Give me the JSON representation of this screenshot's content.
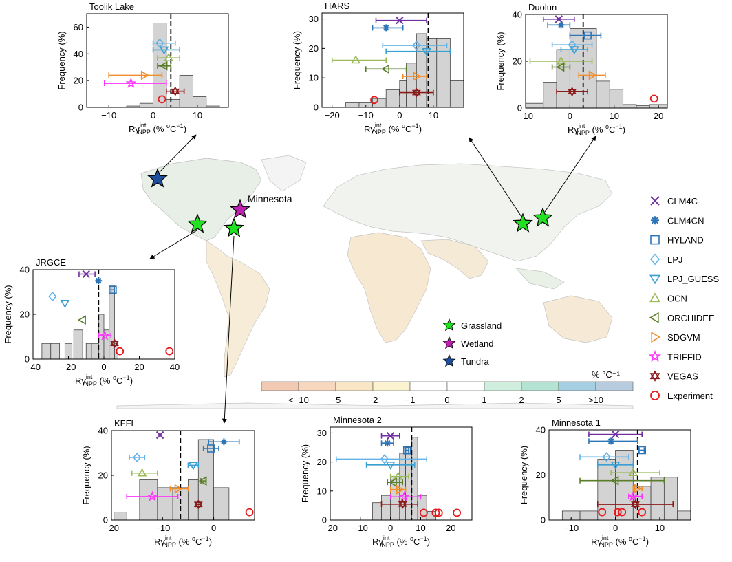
{
  "figure": {
    "legend_title": "",
    "models": [
      {
        "name": "CLM4C",
        "color": "#7030a0",
        "icon": "x-marker-icon"
      },
      {
        "name": "CLM4CN",
        "color": "#2e75b6",
        "icon": "asterisk-marker-icon"
      },
      {
        "name": "HYLAND",
        "color": "#2e75b6",
        "icon": "square-marker-icon"
      },
      {
        "name": "LPJ",
        "color": "#63b3e8",
        "icon": "diamond-marker-icon"
      },
      {
        "name": "LPJ_GUESS",
        "color": "#3a9fd2",
        "icon": "triangle-down-marker-icon"
      },
      {
        "name": "OCN",
        "color": "#9bbb59",
        "icon": "triangle-up-marker-icon"
      },
      {
        "name": "ORCHIDEE",
        "color": "#5a7d2a",
        "icon": "triangle-left-marker-icon"
      },
      {
        "name": "SDGVM",
        "color": "#f28e2b",
        "icon": "triangle-right-marker-icon"
      },
      {
        "name": "TRIFFID",
        "color": "#ff33ff",
        "icon": "star-marker-icon"
      },
      {
        "name": "VEGAS",
        "color": "#8b1a1a",
        "icon": "hexagram-marker-icon"
      },
      {
        "name": "Experiment",
        "color": "#e41a1c",
        "icon": "circle-marker-icon"
      }
    ],
    "map": {
      "site_legend": [
        {
          "label": "Grassland",
          "color": "#22e022"
        },
        {
          "label": "Wetland",
          "color": "#c020b0"
        },
        {
          "label": "Tundra",
          "color": "#1f4e9c"
        }
      ],
      "minnesota_label": "Minnesota",
      "colorbar_unit": "% °C⁻¹",
      "colorbar_labels": [
        "<-10",
        "-5",
        "-2",
        "-1",
        "0",
        "1",
        "2",
        "5",
        ">10"
      ],
      "colorbar_colors": [
        "#f2c9b3",
        "#f7d8bf",
        "#f9e6c4",
        "#fbf3cf",
        "#ffffff",
        "#ffffff",
        "#cfeedd",
        "#b5e3d3",
        "#a6cfe3",
        "#b8cce0"
      ]
    }
  },
  "chart_data": [
    {
      "type": "bar",
      "title": "Toolik Lake",
      "xlabel": "Rγᴺᴾᴾ (% °C⁻¹)",
      "ylabel": "Frequency (%)",
      "xlim": [
        -15,
        17
      ],
      "ylim": [
        0,
        70
      ],
      "xticks": [
        -10,
        0,
        10
      ],
      "yticks": [
        0,
        20,
        40,
        60
      ],
      "bins": [
        {
          "x0": -6,
          "x1": -3,
          "value": 1
        },
        {
          "x0": -3,
          "x1": 0,
          "value": 3
        },
        {
          "x0": 0,
          "x1": 3,
          "value": 63
        },
        {
          "x0": 3,
          "x1": 6,
          "value": 6
        },
        {
          "x0": 6,
          "x1": 9,
          "value": 24
        },
        {
          "x0": 9,
          "x1": 12,
          "value": 8
        },
        {
          "x0": 12,
          "x1": 15,
          "value": 1
        }
      ],
      "dashed_line": 4,
      "markers": [
        {
          "model": "LPJ",
          "x": 1.5,
          "y": 48,
          "lo": 0,
          "hi": 5
        },
        {
          "model": "LPJ_GUESS",
          "x": 2.5,
          "y": 43,
          "lo": 0,
          "hi": 6
        },
        {
          "model": "OCN",
          "x": 3.5,
          "y": 37,
          "lo": 1,
          "hi": 6
        },
        {
          "model": "ORCHIDEE",
          "x": 2.5,
          "y": 31,
          "lo": 1,
          "hi": 4
        },
        {
          "model": "SDGVM",
          "x": -2,
          "y": 24,
          "lo": -10,
          "hi": 2
        },
        {
          "model": "TRIFFID",
          "x": -5,
          "y": 18,
          "lo": -11,
          "hi": 3
        },
        {
          "model": "VEGAS",
          "x": 5,
          "y": 12,
          "lo": 3,
          "hi": 7
        },
        {
          "model": "Experiment",
          "x": 2,
          "y": 6
        }
      ]
    },
    {
      "type": "bar",
      "title": "HARS",
      "xlabel": "Rγᴺᴾᴾ (% °C⁻¹)",
      "ylabel": "Frequency (%)",
      "xlim": [
        -23,
        19
      ],
      "ylim": [
        0,
        32
      ],
      "xticks": [
        -20,
        -10,
        0,
        10
      ],
      "yticks": [
        0,
        10,
        20,
        30
      ],
      "bins": [
        {
          "x0": -16,
          "x1": -12,
          "value": 1.5
        },
        {
          "x0": -12,
          "x1": -8,
          "value": 1.5
        },
        {
          "x0": -8,
          "x1": -4,
          "value": 3
        },
        {
          "x0": -4,
          "x1": 0,
          "value": 6
        },
        {
          "x0": 0,
          "x1": 2,
          "value": 9
        },
        {
          "x0": 2,
          "x1": 5,
          "value": 15
        },
        {
          "x0": 5,
          "x1": 8,
          "value": 25
        },
        {
          "x0": 8,
          "x1": 11,
          "value": 23.5
        },
        {
          "x0": 11,
          "x1": 15,
          "value": 23.5
        },
        {
          "x0": 15,
          "x1": 19,
          "value": 9
        }
      ],
      "dashed_line": 8.5,
      "markers": [
        {
          "model": "CLM4C",
          "x": 0,
          "y": 29.5,
          "lo": -7,
          "hi": 8
        },
        {
          "model": "CLM4CN",
          "x": -4,
          "y": 27,
          "lo": -8,
          "hi": 1
        },
        {
          "model": "LPJ",
          "x": 5,
          "y": 21,
          "lo": -5,
          "hi": 14
        },
        {
          "model": "LPJ_GUESS",
          "x": 8,
          "y": 19,
          "lo": -4,
          "hi": 15
        },
        {
          "model": "OCN",
          "x": -13,
          "y": 16,
          "lo": -20,
          "hi": -4
        },
        {
          "model": "ORCHIDEE",
          "x": -4,
          "y": 13,
          "lo": -10,
          "hi": 2
        },
        {
          "model": "SDGVM",
          "x": 5,
          "y": 10.5,
          "lo": 1,
          "hi": 8
        },
        {
          "model": "VEGAS",
          "x": 5,
          "y": 5,
          "lo": 0,
          "hi": 10
        },
        {
          "model": "Experiment",
          "x": -7.5,
          "y": 2.5
        }
      ]
    },
    {
      "type": "bar",
      "title": "Duolun",
      "xlabel": "Rγᴺᴾᴾ (% °C⁻¹)",
      "ylabel": "Frequency (%)",
      "xlim": [
        -10,
        22
      ],
      "ylim": [
        0,
        40
      ],
      "xticks": [
        -10,
        0,
        10,
        20
      ],
      "yticks": [
        0,
        20,
        40
      ],
      "bins": [
        {
          "x0": -10,
          "x1": -6,
          "value": 2
        },
        {
          "x0": -6,
          "x1": -3,
          "value": 11
        },
        {
          "x0": -3,
          "x1": 0,
          "value": 25
        },
        {
          "x0": 0,
          "x1": 3,
          "value": 34
        },
        {
          "x0": 3,
          "x1": 6,
          "value": 34
        },
        {
          "x0": 6,
          "x1": 9,
          "value": 11.5
        },
        {
          "x0": 9,
          "x1": 12,
          "value": 8
        },
        {
          "x0": 12,
          "x1": 15,
          "value": 1.5
        },
        {
          "x0": 15,
          "x1": 18,
          "value": 1
        },
        {
          "x0": 18,
          "x1": 22,
          "value": 1.5
        }
      ],
      "dashed_line": 3,
      "markers": [
        {
          "model": "CLM4C",
          "x": -2.5,
          "y": 38,
          "lo": -6,
          "hi": 1
        },
        {
          "model": "CLM4CN",
          "x": -2,
          "y": 35.5,
          "lo": -5,
          "hi": 0
        },
        {
          "model": "HYLAND",
          "x": 4,
          "y": 31,
          "lo": 0,
          "hi": 7
        },
        {
          "model": "LPJ",
          "x": 0.5,
          "y": 27,
          "lo": -4,
          "hi": 5
        },
        {
          "model": "LPJ_GUESS",
          "x": 1,
          "y": 25,
          "lo": -2,
          "hi": 4
        },
        {
          "model": "OCN",
          "x": -2,
          "y": 20,
          "lo": -9,
          "hi": 5
        },
        {
          "model": "ORCHIDEE",
          "x": -2,
          "y": 17.5,
          "lo": -4,
          "hi": 0
        },
        {
          "model": "SDGVM",
          "x": 5,
          "y": 14,
          "lo": 2,
          "hi": 8
        },
        {
          "model": "VEGAS",
          "x": 0.5,
          "y": 7,
          "lo": -3,
          "hi": 4
        },
        {
          "model": "Experiment",
          "x": 19,
          "y": 4
        }
      ]
    },
    {
      "type": "bar",
      "title": "JRGCE",
      "xlabel": "Rγᴺᴾᴾ (% °C⁻¹)",
      "ylabel": "Frequency (%)",
      "xlim": [
        -40,
        40
      ],
      "ylim": [
        0,
        40
      ],
      "xticks": [
        -40,
        -20,
        0,
        20,
        40
      ],
      "yticks": [
        0,
        20,
        40
      ],
      "bins": [
        {
          "x0": -35,
          "x1": -30,
          "value": 7
        },
        {
          "x0": -30,
          "x1": -25,
          "value": 7
        },
        {
          "x0": -22,
          "x1": -18,
          "value": 7
        },
        {
          "x0": -17,
          "x1": -12,
          "value": 13
        },
        {
          "x0": -10,
          "x1": -7,
          "value": 7
        },
        {
          "x0": -7,
          "x1": -3,
          "value": 7
        },
        {
          "x0": -3,
          "x1": 0,
          "value": 20
        },
        {
          "x0": 0,
          "x1": 3,
          "value": 13
        },
        {
          "x0": 3,
          "x1": 6,
          "value": 33
        },
        {
          "x0": 6,
          "x1": 8,
          "value": 7
        }
      ],
      "dashed_line": -3,
      "markers": [
        {
          "model": "CLM4C",
          "x": -10,
          "y": 38,
          "lo": -14,
          "hi": -5
        },
        {
          "model": "CLM4CN",
          "x": -3,
          "y": 35,
          "lo": -4,
          "hi": -2
        },
        {
          "model": "HYLAND",
          "x": 5,
          "y": 31,
          "lo": 4,
          "hi": 6
        },
        {
          "model": "LPJ",
          "x": -29,
          "y": 28
        },
        {
          "model": "LPJ_GUESS",
          "x": -22,
          "y": 25
        },
        {
          "model": "ORCHIDEE",
          "x": -12,
          "y": 17.5
        },
        {
          "model": "TRIFFID",
          "x": 0.5,
          "y": 10.5,
          "lo": -3,
          "hi": 4
        },
        {
          "model": "VEGAS",
          "x": 6,
          "y": 7
        },
        {
          "model": "Experiment",
          "x": 9,
          "y": 3.5
        },
        {
          "model": "Experiment",
          "x": 37,
          "y": 3.5
        }
      ]
    },
    {
      "type": "bar",
      "title": "KFFL",
      "xlabel": "Rγᴺᴾᴾ (% °C⁻¹)",
      "ylabel": "Frequency (%)",
      "xlim": [
        -20,
        8
      ],
      "ylim": [
        0,
        40
      ],
      "xticks": [
        -20,
        -10,
        0
      ],
      "yticks": [
        0,
        20,
        40
      ],
      "bins": [
        {
          "x0": -19.5,
          "x1": -17,
          "value": 3.5
        },
        {
          "x0": -14.5,
          "x1": -11,
          "value": 18
        },
        {
          "x0": -11,
          "x1": -8,
          "value": 14.5
        },
        {
          "x0": -8,
          "x1": -5,
          "value": 14.5
        },
        {
          "x0": -5,
          "x1": -3,
          "value": 18
        },
        {
          "x0": -3,
          "x1": 0,
          "value": 36
        },
        {
          "x0": 0,
          "x1": 3,
          "value": 14.5
        }
      ],
      "dashed_line": -6.5,
      "markers": [
        {
          "model": "CLM4C",
          "x": -10.5,
          "y": 38
        },
        {
          "model": "CLM4CN",
          "x": 2,
          "y": 35,
          "lo": -1,
          "hi": 5
        },
        {
          "model": "HYLAND",
          "x": -0.5,
          "y": 32,
          "lo": -2,
          "hi": 1
        },
        {
          "model": "LPJ",
          "x": -15,
          "y": 28,
          "lo": -16.5,
          "hi": -13.5
        },
        {
          "model": "LPJ_GUESS",
          "x": -4,
          "y": 24.5,
          "lo": -5,
          "hi": -3
        },
        {
          "model": "OCN",
          "x": -14,
          "y": 21,
          "lo": -16,
          "hi": -11
        },
        {
          "model": "ORCHIDEE",
          "x": -2,
          "y": 17.5,
          "lo": -2.5,
          "hi": -1.5
        },
        {
          "model": "SDGVM",
          "x": -7,
          "y": 14,
          "lo": -8.5,
          "hi": -5
        },
        {
          "model": "TRIFFID",
          "x": -12,
          "y": 10.5,
          "lo": -17,
          "hi": -7
        },
        {
          "model": "VEGAS",
          "x": -3,
          "y": 7,
          "lo": -3.5,
          "hi": -2.5
        },
        {
          "model": "Experiment",
          "x": 7,
          "y": 3.5
        }
      ]
    },
    {
      "type": "bar",
      "title": "Minnesota 2",
      "xlabel": "Rγᴺᴾᴾ (% °C⁻¹)",
      "ylabel": "Frequency (%)",
      "xlim": [
        -20,
        27
      ],
      "ylim": [
        0,
        32
      ],
      "xticks": [
        -20,
        -10,
        0,
        10,
        20
      ],
      "yticks": [
        0,
        10,
        20,
        30
      ],
      "bins": [
        {
          "x0": -6,
          "x1": -3,
          "value": 6
        },
        {
          "x0": -3,
          "x1": 0,
          "value": 8.5
        },
        {
          "x0": 0,
          "x1": 3,
          "value": 15
        },
        {
          "x0": 3,
          "x1": 5,
          "value": 23
        },
        {
          "x0": 5,
          "x1": 7,
          "value": 25
        },
        {
          "x0": 7,
          "x1": 9,
          "value": 28.5
        },
        {
          "x0": 9,
          "x1": 12,
          "value": 8.5
        },
        {
          "x0": 12,
          "x1": 15,
          "value": 3
        }
      ],
      "dashed_line": 7,
      "markers": [
        {
          "model": "CLM4C",
          "x": 0,
          "y": 29,
          "lo": -3,
          "hi": 3
        },
        {
          "model": "CLM4CN",
          "x": -1,
          "y": 26.5,
          "lo": -3,
          "hi": 1
        },
        {
          "model": "HYLAND",
          "x": 5.5,
          "y": 24,
          "lo": 5,
          "hi": 6
        },
        {
          "model": "LPJ",
          "x": -2,
          "y": 21,
          "lo": -18,
          "hi": 12
        },
        {
          "model": "LPJ_GUESS",
          "x": 0,
          "y": 19,
          "lo": -8,
          "hi": 8
        },
        {
          "model": "OCN",
          "x": 2.5,
          "y": 15,
          "lo": 0,
          "hi": 6
        },
        {
          "model": "ORCHIDEE",
          "x": 1,
          "y": 13,
          "lo": -1,
          "hi": 4
        },
        {
          "model": "SDGVM",
          "x": 3,
          "y": 10.5,
          "lo": 0,
          "hi": 5
        },
        {
          "model": "TRIFFID",
          "x": 4.5,
          "y": 8,
          "lo": 0,
          "hi": 10
        },
        {
          "model": "VEGAS",
          "x": 4,
          "y": 5.5,
          "lo": -3,
          "hi": 9
        },
        {
          "model": "Experiment",
          "x": 11,
          "y": 2.5
        },
        {
          "model": "Experiment",
          "x": 15,
          "y": 2.5
        },
        {
          "model": "Experiment",
          "x": 16,
          "y": 2.5
        },
        {
          "model": "Experiment",
          "x": 22,
          "y": 2.5
        }
      ]
    },
    {
      "type": "bar",
      "title": "Minnesota 1",
      "xlabel": "Rγᴺᴾᴾ (% °C⁻¹)",
      "ylabel": "Frequency (%)",
      "xlim": [
        -15,
        17
      ],
      "ylim": [
        0,
        40
      ],
      "xticks": [
        -10,
        0,
        10
      ],
      "yticks": [
        0,
        20,
        40
      ],
      "bins": [
        {
          "x0": -12,
          "x1": -8,
          "value": 4
        },
        {
          "x0": -8,
          "x1": -4,
          "value": 4
        },
        {
          "x0": -4,
          "x1": 0,
          "value": 27
        },
        {
          "x0": 0,
          "x1": 4,
          "value": 31
        },
        {
          "x0": 4,
          "x1": 8,
          "value": 15
        },
        {
          "x0": 8,
          "x1": 11,
          "value": 19
        },
        {
          "x0": 11,
          "x1": 14,
          "value": 19
        },
        {
          "x0": 14,
          "x1": 17,
          "value": 4
        }
      ],
      "dashed_line": 5,
      "markers": [
        {
          "model": "CLM4C",
          "x": 0,
          "y": 38,
          "lo": -6,
          "hi": 6
        },
        {
          "model": "CLM4CN",
          "x": -1,
          "y": 35,
          "lo": -6,
          "hi": 5
        },
        {
          "model": "HYLAND",
          "x": 6,
          "y": 31,
          "lo": 5.5,
          "hi": 6.5
        },
        {
          "model": "LPJ",
          "x": -2,
          "y": 28,
          "lo": -8,
          "hi": 3
        },
        {
          "model": "LPJ_GUESS",
          "x": 0,
          "y": 24.5,
          "lo": -4,
          "hi": 4
        },
        {
          "model": "OCN",
          "x": 4,
          "y": 21,
          "lo": -1,
          "hi": 10
        },
        {
          "model": "ORCHIDEE",
          "x": 0,
          "y": 17.5,
          "lo": -8,
          "hi": 11
        },
        {
          "model": "SDGVM",
          "x": 5,
          "y": 14,
          "lo": 4,
          "hi": 6
        },
        {
          "model": "TRIFFID",
          "x": 4,
          "y": 10.5,
          "lo": 3,
          "hi": 6
        },
        {
          "model": "VEGAS",
          "x": 4.5,
          "y": 7,
          "lo": -4,
          "hi": 13
        },
        {
          "model": "Experiment",
          "x": -3,
          "y": 3.5
        },
        {
          "model": "Experiment",
          "x": 0.5,
          "y": 3.5
        },
        {
          "model": "Experiment",
          "x": 1.5,
          "y": 3.5
        },
        {
          "model": "Experiment",
          "x": 6,
          "y": 3.5
        }
      ]
    }
  ]
}
